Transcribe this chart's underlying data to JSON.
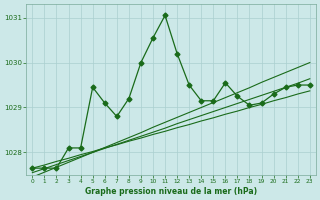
{
  "x": [
    0,
    1,
    2,
    3,
    4,
    5,
    6,
    7,
    8,
    9,
    10,
    11,
    12,
    13,
    14,
    15,
    16,
    17,
    18,
    19,
    20,
    21,
    22,
    23
  ],
  "y_main": [
    1027.65,
    1027.65,
    1027.65,
    1028.1,
    1028.1,
    1029.45,
    1029.1,
    1028.8,
    1029.2,
    1030.0,
    1030.55,
    1031.05,
    1030.2,
    1029.5,
    1029.15,
    1029.15,
    1029.55,
    1029.25,
    1029.05,
    1029.1,
    1029.3,
    1029.45,
    1029.5,
    1029.5
  ],
  "y_trend1": [
    1027.65,
    1027.72,
    1027.8,
    1027.87,
    1027.95,
    1028.02,
    1028.1,
    1028.17,
    1028.25,
    1028.32,
    1028.4,
    1028.47,
    1028.55,
    1028.62,
    1028.7,
    1028.77,
    1028.85,
    1028.92,
    1029.0,
    1029.07,
    1029.15,
    1029.22,
    1029.3,
    1029.37
  ],
  "y_trend2": [
    1027.55,
    1027.64,
    1027.73,
    1027.82,
    1027.91,
    1028.0,
    1028.09,
    1028.18,
    1028.27,
    1028.36,
    1028.45,
    1028.54,
    1028.64,
    1028.73,
    1028.82,
    1028.91,
    1029.0,
    1029.09,
    1029.18,
    1029.27,
    1029.36,
    1029.45,
    1029.54,
    1029.64
  ],
  "y_trend3": [
    1027.45,
    1027.56,
    1027.67,
    1027.78,
    1027.89,
    1028.0,
    1028.11,
    1028.22,
    1028.33,
    1028.44,
    1028.56,
    1028.67,
    1028.78,
    1028.89,
    1029.0,
    1029.11,
    1029.22,
    1029.33,
    1029.44,
    1029.56,
    1029.67,
    1029.78,
    1029.89,
    1030.0
  ],
  "ylim": [
    1027.5,
    1031.3
  ],
  "yticks": [
    1028,
    1029,
    1030,
    1031
  ],
  "xlim": [
    -0.5,
    23.5
  ],
  "xticks": [
    0,
    1,
    2,
    3,
    4,
    5,
    6,
    7,
    8,
    9,
    10,
    11,
    12,
    13,
    14,
    15,
    16,
    17,
    18,
    19,
    20,
    21,
    22,
    23
  ],
  "line_color": "#1a6b1a",
  "bg_color": "#cce8e8",
  "grid_color": "#aacfcf",
  "xlabel": "Graphe pression niveau de la mer (hPa)",
  "marker": "+",
  "markersize": 4,
  "marker_main": "D",
  "markersize_main": 2.5
}
